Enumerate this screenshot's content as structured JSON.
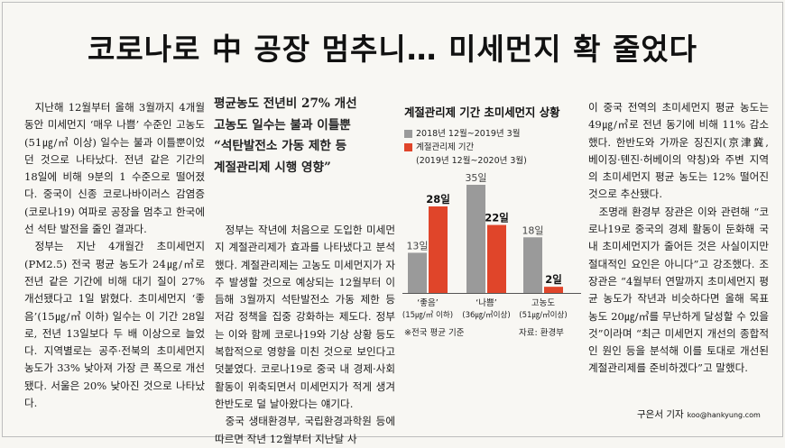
{
  "headline": "코로나로 中 공장 멈추니… 미세먼지 확 줄었다",
  "column1": [
    "지난해 12월부터 올해 3월까지 4개월 동안 미세먼지 ‘매우 나쁨’ 수준인 고농도(51㎍/㎥ 이상) 일수는 불과 이틀뿐이었던 것으로 나타났다. 전년 같은 기간의 18일에 비해 9분의 1 수준으로 떨어졌다. 중국이 신종 코로나바이러스 감염증(코로나19) 여파로 공장을 멈추고 한국에선 석탄 발전을 줄인 결과다.",
    "정부는 지난 4개월간 초미세먼지(PM2.5) 전국 평균 농도가 24㎍/㎥로 전년 같은 기간에 비해 대기 질이 27% 개선됐다고 1일 밝혔다. 초미세먼지 ‘좋음’(15㎍/㎥ 이하) 일수는 이 기간 28일로, 전년 13일보다 두 배 이상으로 늘었다. 지역별로는 공주·전북의 초미세먼지 농도가 33% 낮아져 가장 큰 폭으로 개선됐다. 서울은 20% 낮아진 것으로 나타났다."
  ],
  "subheadline": [
    "평균농도 전년비 27% 개선",
    "고농도 일수는 불과 이틀뿐",
    "“석탄발전소 가동 제한 등",
    "계절관리제 시행 영향”"
  ],
  "column2": [
    "정부는 작년에 처음으로 도입한 미세먼지 계절관리제가 효과를 나타냈다고 분석했다. 계절관리제는 고농도 미세먼지가 자주 발생할 것으로 예상되는 12월부터 이듬해 3월까지 석탄발전소 가동 제한 등 저감 정책을 집중 강화하는 제도다. 정부는 이와 함께 코로나19와 기상 상황 등도 복합적으로 영향을 미친 것으로 보인다고 덧붙였다. 코로나19로 중국 내 경제·사회활동이 위축되면서 미세먼지가 적게 생겨 한반도로 덜 날아왔다는 얘기다.",
    "중국 생태환경부, 국립환경과학원 등에 따르면 작년 12월부터 지난달 사"
  ],
  "column4": [
    "이 중국 전역의 초미세먼지 평균 농도는 49㎍/㎥로 전년 동기에 비해 11% 감소했다. 한반도와 가까운 징진지(京津冀, 베이징·톈진·허베이의 약칭)와 주변 지역의 초미세먼지 평균 농도는 12% 떨어진 것으로 추산됐다.",
    "조명래 환경부 장관은 이와 관련해 “코로나19로 중국의 경제 활동이 둔화해 국내 초미세먼지가 줄어든 것은 사실이지만 절대적인 요인은 아니다”고 강조했다. 조 장관은 “4월부터 연말까지 초미세먼지 평균 농도가 작년과 비슷하다면 올해 목표 농도 20㎍/㎥를 무난하게 달성할 수 있을 것”이라며 “최근 미세먼지 개선의 종합적인 원인 등을 분석해 이를 토대로 개선된 계절관리제를 준비하겠다”고 말했다."
  ],
  "byline": {
    "name": "구은서 기자",
    "email": "koo@hankyung.com"
  },
  "chart_data": {
    "type": "bar",
    "title": "계절관리제 기간 초미세먼지 상황",
    "categories": [
      {
        "line1": "‘좋음’",
        "line2": "(15㎍/㎥ 이하)"
      },
      {
        "line1": "‘나쁨’",
        "line2": "(36㎍/㎥이상)"
      },
      {
        "line1": "고농도",
        "line2": "(51㎍/㎥이상)"
      }
    ],
    "series": [
      {
        "name": "2018년 12월~2019년 3월",
        "values": [
          13,
          35,
          18
        ],
        "labels": [
          "13일",
          "35일",
          "18일"
        ],
        "color": "#9a9a9a"
      },
      {
        "name": "계절관리제 기간",
        "name_sub": "(2019년 12월~2020년 3월)",
        "values": [
          28,
          22,
          2
        ],
        "labels": [
          "28일",
          "22일",
          "2일"
        ],
        "color": "#e0452a"
      }
    ],
    "ylim": [
      0,
      40
    ],
    "note_left": "※전국 평균 기준",
    "note_right": "자료: 환경부"
  }
}
